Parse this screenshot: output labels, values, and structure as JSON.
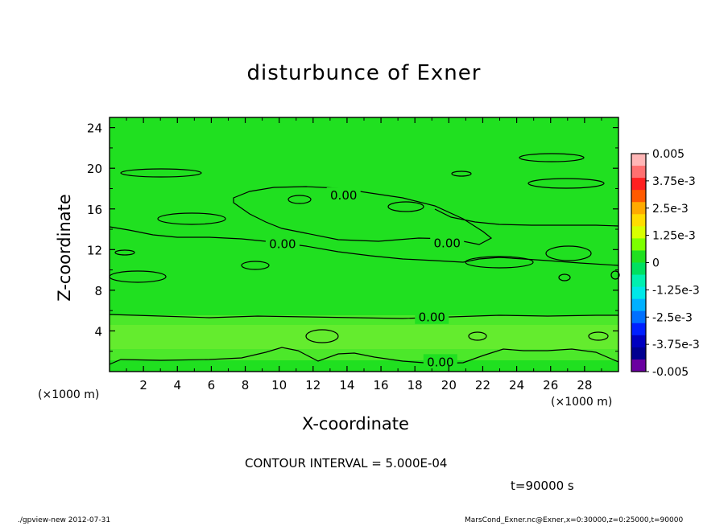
{
  "chart_data": {
    "type": "heatmap",
    "title": "disturbunce of Exner",
    "xlabel": "X-coordinate",
    "ylabel": "Z-coordinate",
    "x_unit_note": "(×1000 m)",
    "xlim": [
      0,
      30
    ],
    "ylim": [
      0,
      25
    ],
    "x_ticks": [
      2,
      4,
      6,
      8,
      10,
      12,
      14,
      16,
      18,
      20,
      22,
      24,
      26,
      28
    ],
    "y_ticks": [
      4,
      8,
      12,
      16,
      20,
      24
    ],
    "colorbar": {
      "labels": [
        "0.005",
        "3.75e-3",
        "2.5e-3",
        "1.25e-3",
        "0",
        "-1.25e-3",
        "-2.5e-3",
        "-3.75e-3",
        "-0.005"
      ],
      "colors": [
        "#ffb6b6",
        "#ff7070",
        "#ff2020",
        "#ff5a00",
        "#ffaa00",
        "#ffdc00",
        "#d8ff00",
        "#7cff00",
        "#20e020",
        "#00e060",
        "#00f0b0",
        "#00e8e8",
        "#00b0ff",
        "#0070ff",
        "#0020ff",
        "#0000c0",
        "#000090",
        "#6a00a0"
      ]
    },
    "contour_labels": [
      {
        "text": "0.00",
        "x": 10.2,
        "z": 12.6
      },
      {
        "text": "0.00",
        "x": 13.8,
        "z": 17.4
      },
      {
        "text": "0.00",
        "x": 19.9,
        "z": 12.7
      },
      {
        "text": "0.00",
        "x": 19.0,
        "z": 5.4
      },
      {
        "text": "0.00",
        "x": 19.5,
        "z": 1.0
      }
    ],
    "contour_interval": "CONTOUR INTERVAL = 5.000E-04",
    "time": "t=90000 s"
  },
  "footer": {
    "left": "./gpview-new   2012-07-31",
    "right": "MarsCond_Exner.nc@Exner,x=0:30000,z=0:25000,t=90000"
  }
}
